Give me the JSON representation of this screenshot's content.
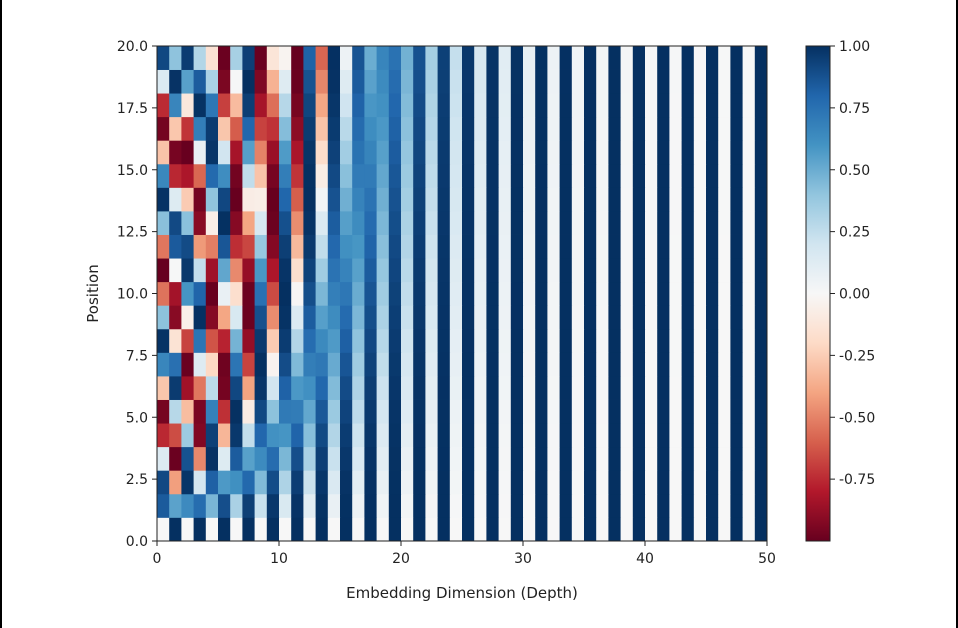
{
  "chart_data": {
    "type": "heatmap",
    "title": "",
    "xlabel": "Embedding Dimension (Depth)",
    "ylabel": "Position",
    "n_positions": 21,
    "n_dimensions": 50,
    "xlim": [
      0,
      50
    ],
    "ylim": [
      0,
      20
    ],
    "x_ticks": [
      "0",
      "10",
      "20",
      "30",
      "40",
      "50"
    ],
    "y_ticks": [
      "0.0",
      "2.5",
      "5.0",
      "7.5",
      "10.0",
      "12.5",
      "15.0",
      "17.5",
      "20.0"
    ],
    "value_range": [
      -1,
      1
    ],
    "encoding": "sinusoidal positional encoding: even dims sin(pos/10000^(i/50)), odd dims cos(pos/10000^((i-1)/50))",
    "colorbar": {
      "colormap": "RdBu",
      "ticks": [
        "1.00",
        "0.75",
        "0.50",
        "0.25",
        "0.00",
        "-0.25",
        "-0.50",
        "-0.75"
      ],
      "colors": [
        "#67001f",
        "#b2182b",
        "#d6604d",
        "#f4a582",
        "#fddbc7",
        "#f7f7f7",
        "#d1e5f0",
        "#92c5de",
        "#4393c3",
        "#2166ac",
        "#053061"
      ]
    }
  }
}
